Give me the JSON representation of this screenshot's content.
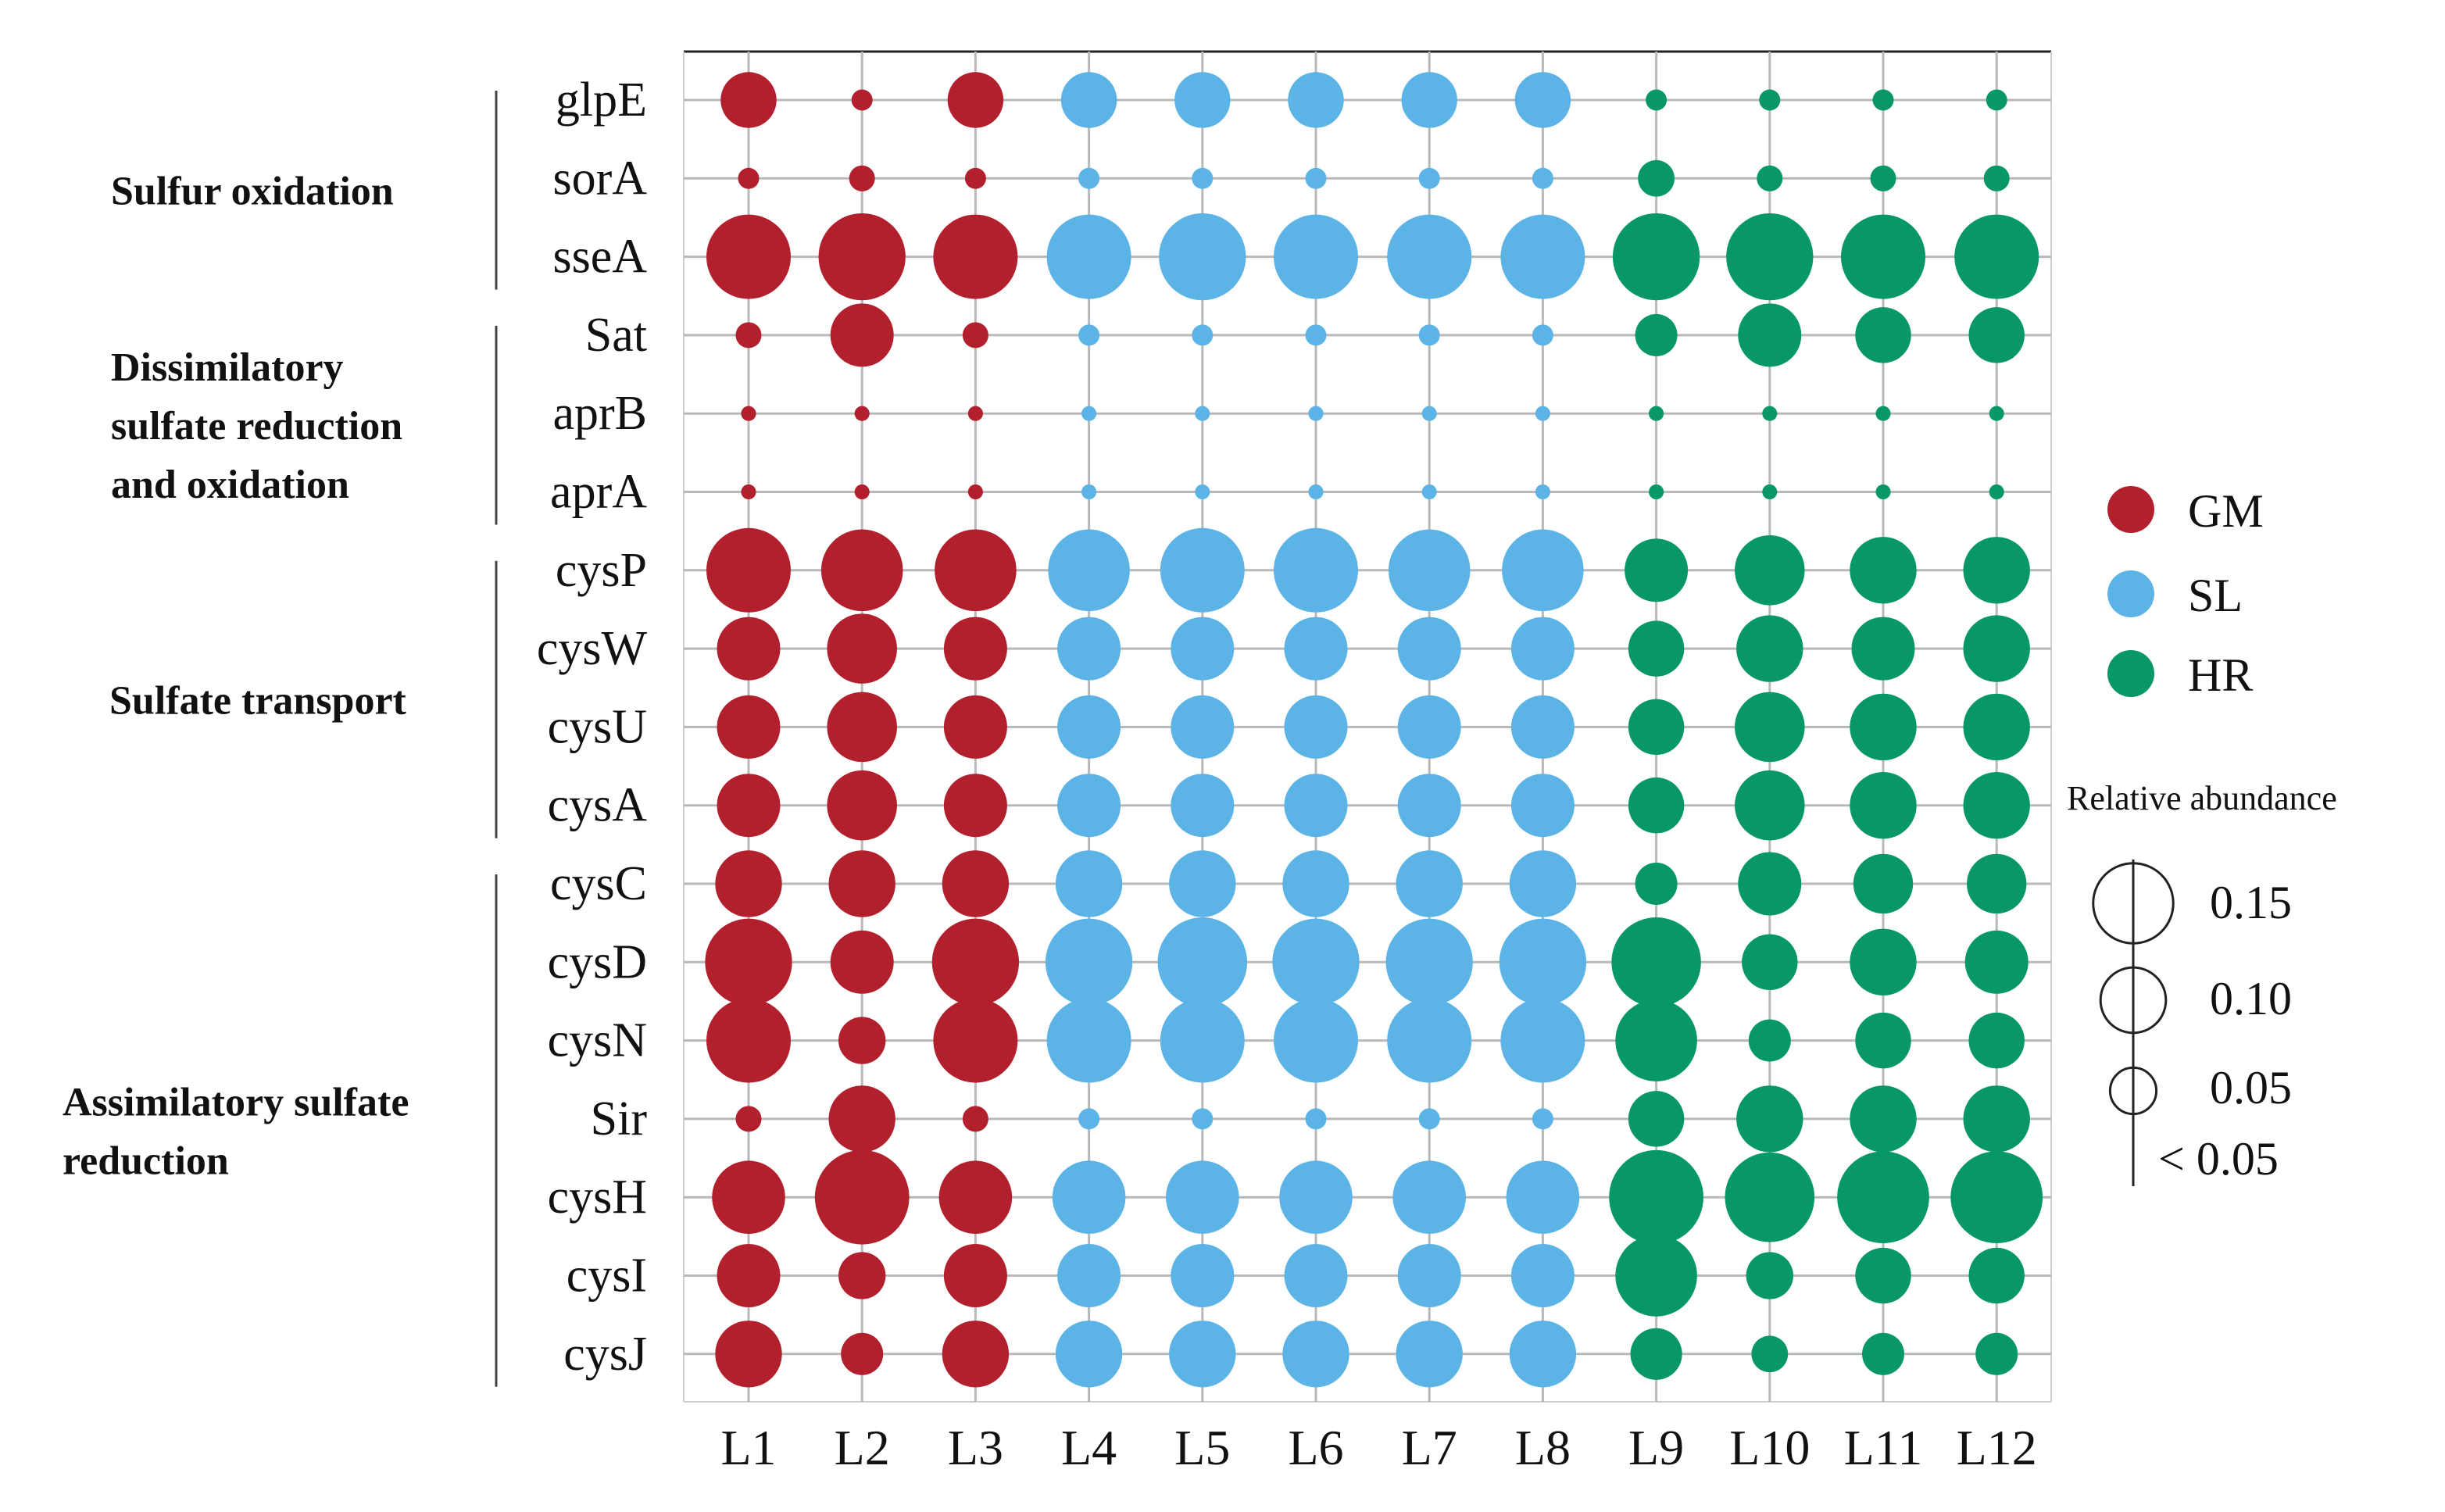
{
  "chart_data": {
    "type": "bubble",
    "columns": [
      "L1",
      "L2",
      "L3",
      "L4",
      "L5",
      "L6",
      "L7",
      "L8",
      "L9",
      "L10",
      "L11",
      "L12"
    ],
    "column_groups": [
      "GM",
      "GM",
      "GM",
      "SL",
      "SL",
      "SL",
      "SL",
      "SL",
      "HR",
      "HR",
      "HR",
      "HR"
    ],
    "rows": [
      "glpE",
      "sorA",
      "sseA",
      "Sat",
      "aprB",
      "aprA",
      "cysP",
      "cysW",
      "cysU",
      "cysA",
      "cysC",
      "cysD",
      "cysN",
      "Sir",
      "cysH",
      "cysI",
      "cysJ"
    ],
    "values": [
      [
        0.07,
        0.01,
        0.07,
        0.07,
        0.07,
        0.07,
        0.07,
        0.07,
        0.01,
        0.01,
        0.01,
        0.01
      ],
      [
        0.01,
        0.015,
        0.01,
        0.01,
        0.01,
        0.01,
        0.01,
        0.01,
        0.03,
        0.015,
        0.015,
        0.015
      ],
      [
        0.16,
        0.17,
        0.16,
        0.16,
        0.17,
        0.16,
        0.16,
        0.16,
        0.17,
        0.17,
        0.16,
        0.16
      ],
      [
        0.015,
        0.09,
        0.015,
        0.01,
        0.01,
        0.01,
        0.01,
        0.01,
        0.04,
        0.09,
        0.07,
        0.07
      ],
      [
        0.005,
        0.005,
        0.005,
        0.005,
        0.005,
        0.005,
        0.005,
        0.005,
        0.005,
        0.005,
        0.005,
        0.005
      ],
      [
        0.005,
        0.005,
        0.005,
        0.005,
        0.005,
        0.005,
        0.005,
        0.005,
        0.005,
        0.005,
        0.005,
        0.005
      ],
      [
        0.16,
        0.15,
        0.15,
        0.15,
        0.16,
        0.16,
        0.15,
        0.15,
        0.09,
        0.11,
        0.1,
        0.1
      ],
      [
        0.09,
        0.11,
        0.09,
        0.09,
        0.09,
        0.09,
        0.09,
        0.09,
        0.07,
        0.1,
        0.09,
        0.1
      ],
      [
        0.09,
        0.11,
        0.09,
        0.09,
        0.09,
        0.09,
        0.09,
        0.09,
        0.07,
        0.11,
        0.1,
        0.1
      ],
      [
        0.09,
        0.11,
        0.09,
        0.09,
        0.09,
        0.09,
        0.09,
        0.09,
        0.07,
        0.11,
        0.1,
        0.1
      ],
      [
        0.1,
        0.1,
        0.1,
        0.1,
        0.1,
        0.1,
        0.1,
        0.1,
        0.04,
        0.09,
        0.08,
        0.08
      ],
      [
        0.17,
        0.09,
        0.17,
        0.17,
        0.18,
        0.17,
        0.17,
        0.17,
        0.18,
        0.07,
        0.1,
        0.09
      ],
      [
        0.16,
        0.05,
        0.16,
        0.16,
        0.16,
        0.16,
        0.16,
        0.16,
        0.15,
        0.04,
        0.07,
        0.07
      ],
      [
        0.015,
        0.1,
        0.015,
        0.01,
        0.01,
        0.01,
        0.01,
        0.01,
        0.07,
        0.1,
        0.1,
        0.1
      ],
      [
        0.12,
        0.2,
        0.12,
        0.12,
        0.12,
        0.12,
        0.12,
        0.12,
        0.2,
        0.18,
        0.19,
        0.19
      ],
      [
        0.09,
        0.05,
        0.09,
        0.09,
        0.09,
        0.09,
        0.09,
        0.09,
        0.15,
        0.05,
        0.07,
        0.07
      ],
      [
        0.1,
        0.04,
        0.1,
        0.1,
        0.1,
        0.1,
        0.1,
        0.1,
        0.06,
        0.03,
        0.04,
        0.04
      ]
    ],
    "row_groups": [
      {
        "lines": [
          "Sulfur oxidation"
        ],
        "rows": [
          "glpE",
          "sorA",
          "sseA"
        ]
      },
      {
        "lines": [
          "Dissimilatory",
          "sulfate reduction",
          "and oxidation"
        ],
        "rows": [
          "Sat",
          "aprB",
          "aprA"
        ]
      },
      {
        "lines": [
          "Sulfate transport"
        ],
        "rows": [
          "cysP",
          "cysW",
          "cysU",
          "cysA"
        ]
      },
      {
        "lines": [
          "Assimilatory sulfate",
          "reduction"
        ],
        "rows": [
          "cysC",
          "cysD",
          "cysN",
          "Sir",
          "cysH",
          "cysI",
          "cysJ"
        ]
      }
    ],
    "legend": [
      {
        "name": "GM",
        "color": "#b21f2d"
      },
      {
        "name": "SL",
        "color": "#5cb3e6"
      },
      {
        "name": "HR",
        "color": "#079768"
      }
    ],
    "size_legend": {
      "title": "Relative abundance",
      "levels": [
        0.15,
        0.1,
        0.05
      ],
      "labels": [
        "0.15",
        "0.10",
        "0.05",
        "< 0.05"
      ]
    },
    "grid": true,
    "legend_position": "right"
  }
}
